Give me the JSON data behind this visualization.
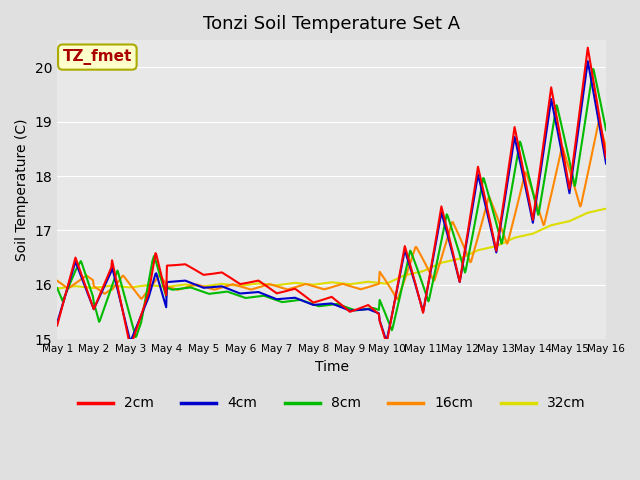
{
  "title": "Tonzi Soil Temperature Set A",
  "xlabel": "Time",
  "ylabel": "Soil Temperature (C)",
  "ylim": [
    15.0,
    20.5
  ],
  "annotation_text": "TZ_fmet",
  "annotation_color": "#aa0000",
  "annotation_bg": "#ffffcc",
  "annotation_border": "#aaaa00",
  "background_color": "#e0e0e0",
  "plot_bg": "#e8e8e8",
  "grid_color": "#ffffff",
  "colors": {
    "2cm": "#ff0000",
    "4cm": "#0000cc",
    "8cm": "#00bb00",
    "16cm": "#ff8800",
    "32cm": "#dddd00"
  },
  "tick_labels": [
    "May 1",
    "May 2",
    "May 3",
    "May 4",
    "May 5",
    "May 6",
    "May 7",
    "May 8",
    "May 9",
    "May 10",
    "May 11",
    "May 12",
    "May 13",
    "May 14",
    "May 15",
    "May 16"
  ]
}
